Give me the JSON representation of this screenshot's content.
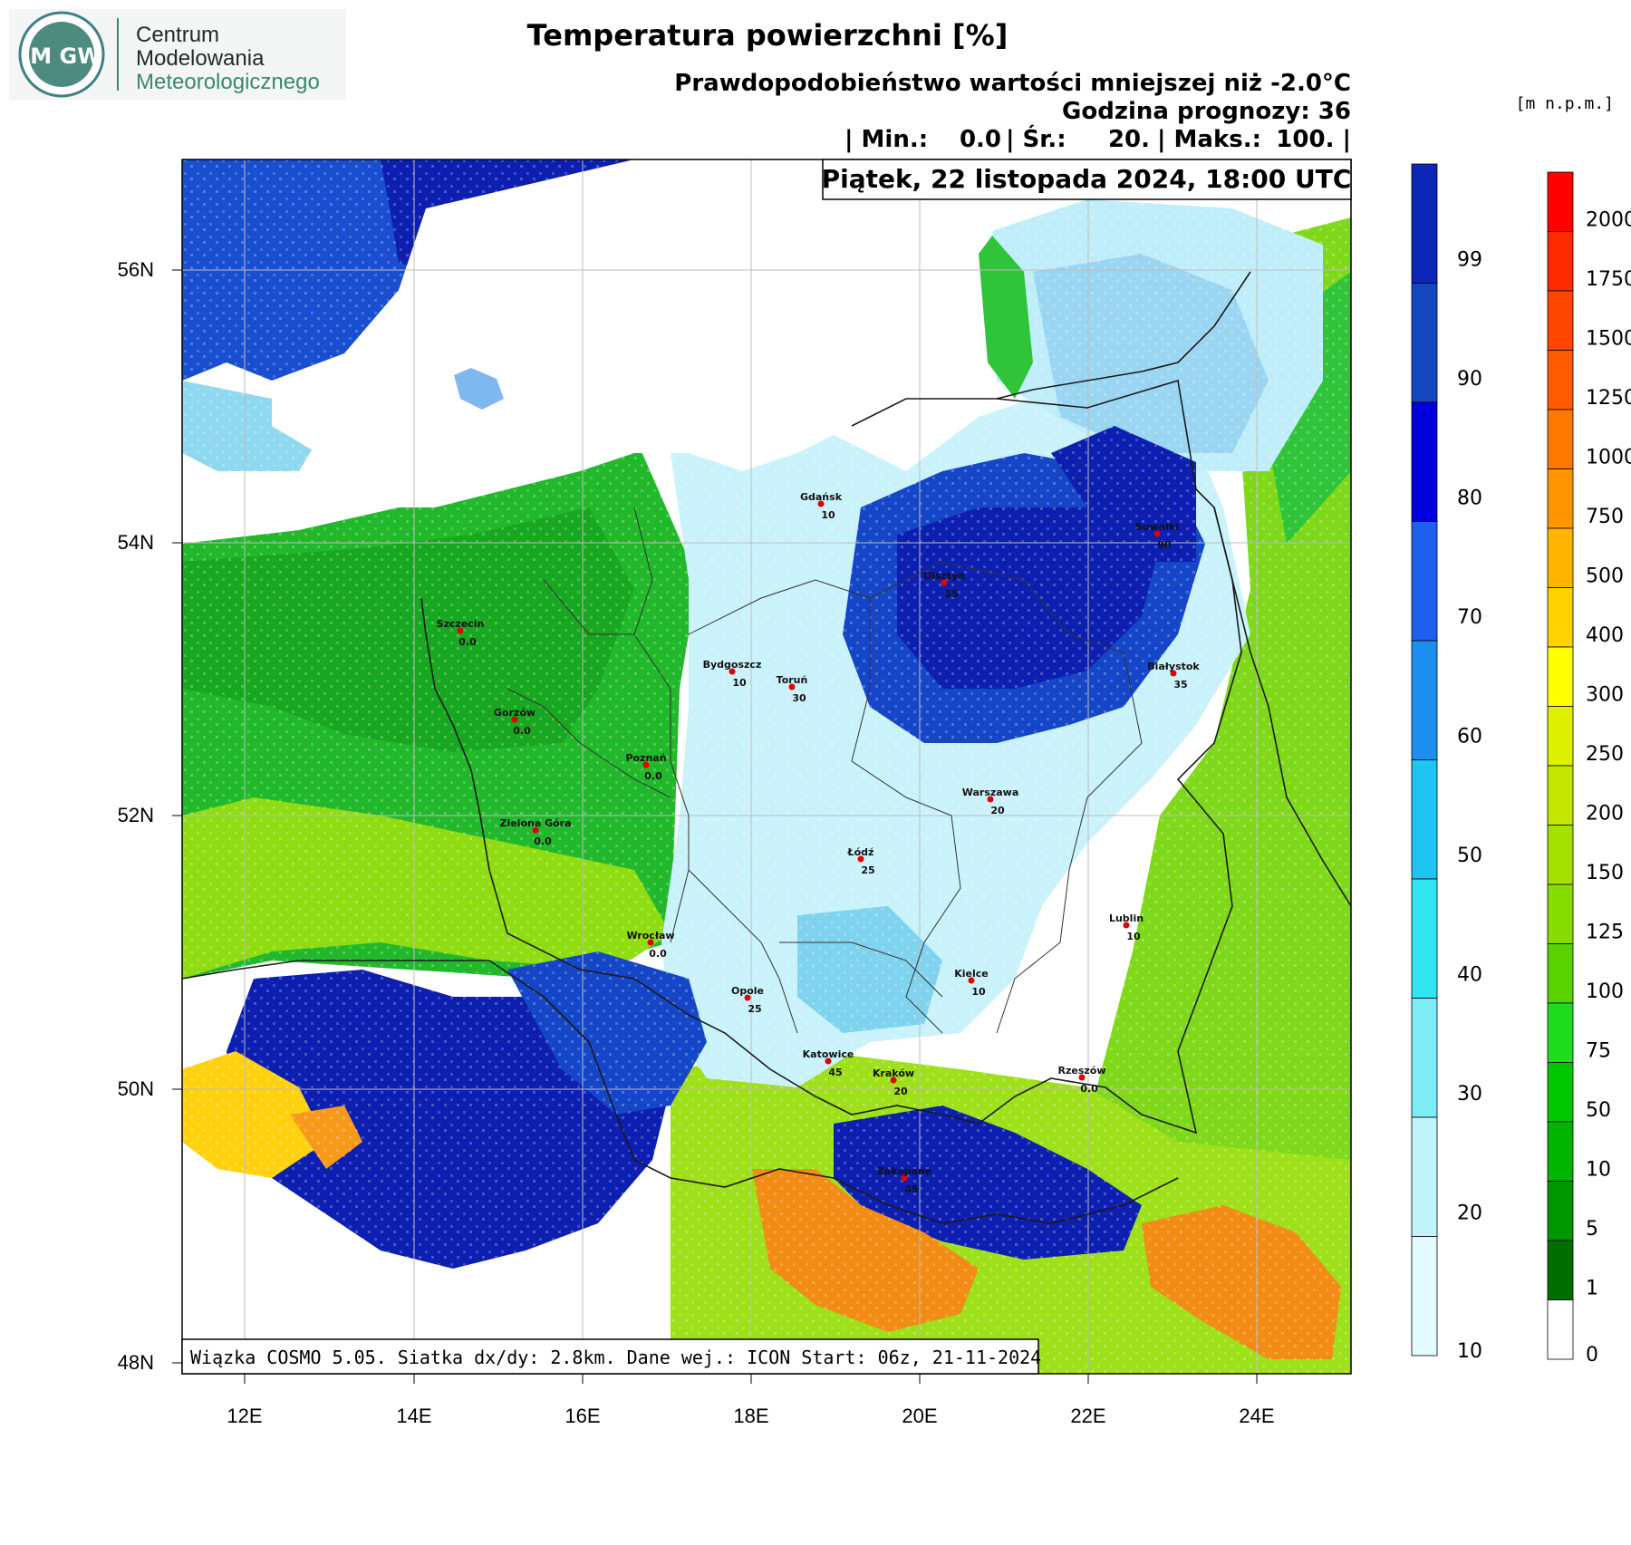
{
  "logo": {
    "letters": "IM GW",
    "org_lines": [
      "Centrum",
      "Modelowania",
      "Meteorologicznego"
    ]
  },
  "header": {
    "title": "Temperatura powierzchni [%]",
    "subtitle": "Prawdopodobieństwo wartości mniejszej niż -2.0°C",
    "forecast_hour": "Godzina prognozy: 36",
    "stats": {
      "min_label": "| Min.:",
      "min_value": "0.0",
      "avg_label": "| Śr.:",
      "avg_value": "20.",
      "max_label": "| Maks.:",
      "max_value": "100. |"
    },
    "valid_time": "Piątek, 22 listopada 2024, 18:00 UTC",
    "units_label": "[m n.p.m.]"
  },
  "footer_note": "Wiązka COSMO 5.05. Siatka dx/dy: 2.8km. Dane wej.: ICON Start: 06z, 21-11-2024",
  "axes": {
    "lat_ticks": [
      "56N",
      "54N",
      "52N",
      "50N",
      "48N"
    ],
    "lon_ticks": [
      "12E",
      "14E",
      "16E",
      "18E",
      "20E",
      "22E",
      "24E"
    ]
  },
  "prob_scale": {
    "labels": [
      "99",
      "90",
      "80",
      "70",
      "60",
      "50",
      "40",
      "30",
      "20",
      "10"
    ],
    "colors": [
      "#0e26b8",
      "#1446c0",
      "#0000dc",
      "#1f5ff0",
      "#1a8ff0",
      "#1ec5f0",
      "#30e6f0",
      "#7eecf5",
      "#c0f3fa",
      "#e2fbfe"
    ]
  },
  "elev_scale": {
    "labels": [
      "2000",
      "1750",
      "1500",
      "1250",
      "1000",
      "750",
      "500",
      "400",
      "300",
      "250",
      "200",
      "150",
      "125",
      "100",
      "75",
      "50",
      "10",
      "5",
      "1",
      "0"
    ],
    "colors": [
      "#ff0000",
      "#ff2a00",
      "#ff4600",
      "#ff5a00",
      "#ff7800",
      "#ff9600",
      "#ffb400",
      "#ffd200",
      "#ffff00",
      "#dcf000",
      "#c3e600",
      "#a5e100",
      "#87dc00",
      "#5ad200",
      "#1edc1e",
      "#00c800",
      "#00b400",
      "#009600",
      "#006e00",
      "#ffffff"
    ]
  },
  "cities": [
    {
      "name": "Gdańsk",
      "value": "10"
    },
    {
      "name": "Suwałki",
      "value": "90"
    },
    {
      "name": "Olsztyn",
      "value": "55"
    },
    {
      "name": "Szczecin",
      "value": "0.0"
    },
    {
      "name": "Bydgoszcz",
      "value": "10"
    },
    {
      "name": "Toruń",
      "value": "30"
    },
    {
      "name": "Białystok",
      "value": "35"
    },
    {
      "name": "Gorzów",
      "value": "0.0"
    },
    {
      "name": "Poznań",
      "value": "0.0"
    },
    {
      "name": "Warszawa",
      "value": "20"
    },
    {
      "name": "Zielona Góra",
      "value": "0.0"
    },
    {
      "name": "Łódź",
      "value": "25"
    },
    {
      "name": "Lublin",
      "value": "10"
    },
    {
      "name": "Wrocław",
      "value": "0.0"
    },
    {
      "name": "Kielce",
      "value": "10"
    },
    {
      "name": "Opole",
      "value": "25"
    },
    {
      "name": "Katowice",
      "value": "45"
    },
    {
      "name": "Kraków",
      "value": "20"
    },
    {
      "name": "Rzeszów",
      "value": "0.0"
    },
    {
      "name": "Zakopane",
      "value": "45"
    }
  ]
}
